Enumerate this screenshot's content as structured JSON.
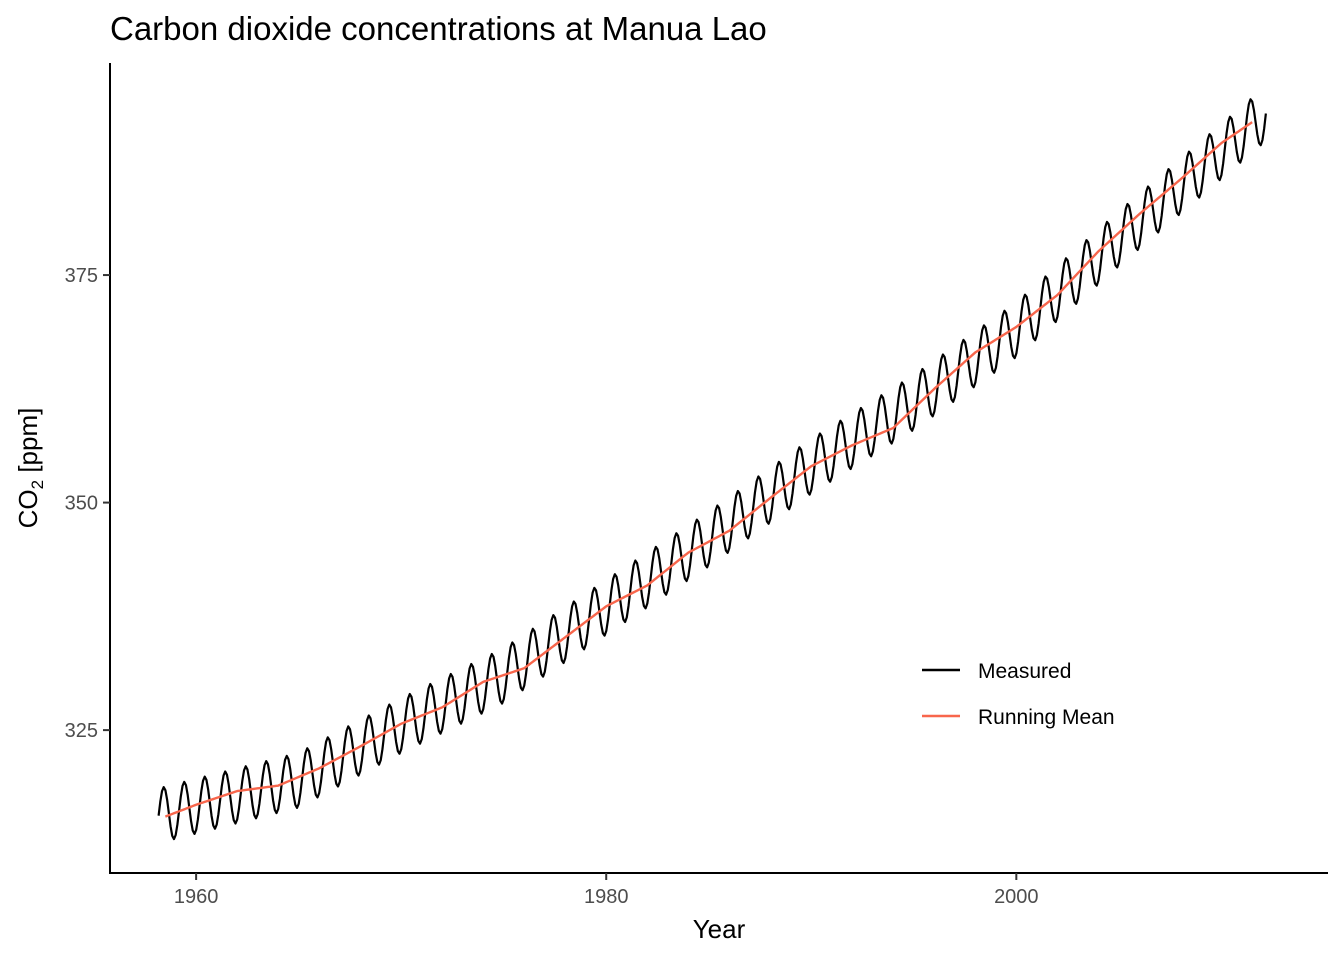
{
  "chart_data": {
    "type": "line",
    "title": "Carbon dioxide concentrations at Manua Lao",
    "xlabel": "Year",
    "ylabel_main": "CO",
    "ylabel_sub": "2",
    "ylabel_unit": " [ppm]",
    "xlim": [
      1955.8,
      2015.2
    ],
    "ylim": [
      309.3,
      398.3
    ],
    "x_ticks": [
      1960,
      1980,
      2000
    ],
    "y_ticks": [
      325,
      350,
      375
    ],
    "legend_position": "bottom-right",
    "series": [
      {
        "name": "Measured",
        "color": "#000000",
        "x_start": 1958.17,
        "x_end": 2012.25,
        "trend_points": [
          [
            1958,
            315.5
          ],
          [
            1965,
            319.5
          ],
          [
            1970,
            325.5
          ],
          [
            1975,
            331.0
          ],
          [
            1980,
            338.5
          ],
          [
            1985,
            346.0
          ],
          [
            1990,
            354.0
          ],
          [
            1995,
            361.0
          ],
          [
            2000,
            369.0
          ],
          [
            2005,
            379.0
          ],
          [
            2012.3,
            393.0
          ]
        ],
        "seasonal_amplitude": 3.0,
        "peak_month": 5
      },
      {
        "name": "Running Mean",
        "color": "#f8664c",
        "points": [
          [
            1958.5,
            315.5
          ],
          [
            1960,
            316.8
          ],
          [
            1962,
            318.3
          ],
          [
            1964,
            318.9
          ],
          [
            1966,
            320.8
          ],
          [
            1968,
            323.2
          ],
          [
            1970,
            325.7
          ],
          [
            1972,
            327.5
          ],
          [
            1974,
            330.3
          ],
          [
            1976,
            331.8
          ],
          [
            1978,
            335.2
          ],
          [
            1980,
            338.6
          ],
          [
            1982,
            340.9
          ],
          [
            1984,
            344.5
          ],
          [
            1986,
            346.9
          ],
          [
            1988,
            350.5
          ],
          [
            1990,
            354.0
          ],
          [
            1992,
            356.3
          ],
          [
            1994,
            358.2
          ],
          [
            1996,
            362.5
          ],
          [
            1998,
            366.5
          ],
          [
            2000,
            369.3
          ],
          [
            2002,
            372.8
          ],
          [
            2004,
            377.6
          ],
          [
            2006,
            381.7
          ],
          [
            2008,
            385.5
          ],
          [
            2010,
            389.5
          ],
          [
            2011.5,
            391.8
          ]
        ]
      }
    ]
  }
}
